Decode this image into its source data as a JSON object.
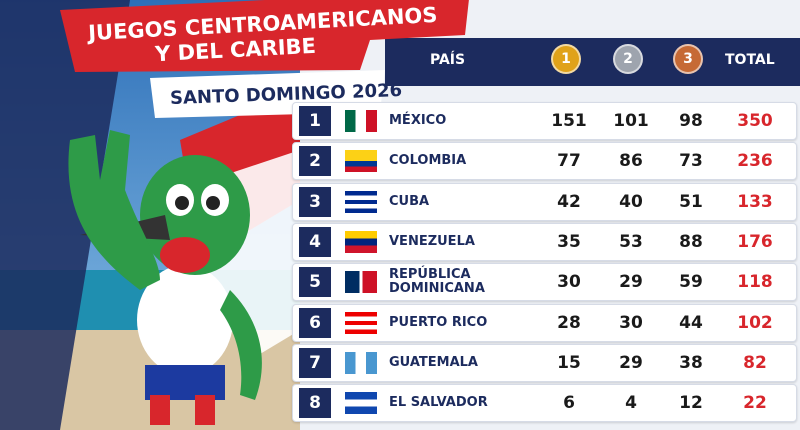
{
  "header": {
    "title_line1": "JUEGOS CENTROAMERICANOS",
    "title_line2": "Y DEL CARIBE",
    "subtitle": "SANTO DOMINGO 2026"
  },
  "table": {
    "columns": [
      "PAÍS",
      "1",
      "2",
      "3",
      "TOTAL"
    ],
    "rows": [
      [
        1,
        "MÉXICO",
        151,
        101,
        98,
        350
      ],
      [
        2,
        "COLOMBIA",
        77,
        86,
        73,
        236
      ],
      [
        3,
        "CUBA",
        42,
        40,
        51,
        133
      ],
      [
        4,
        "VENEZUELA",
        35,
        53,
        88,
        176
      ],
      [
        5,
        "REPÚBLICA DOMINICANA",
        30,
        29,
        59,
        118
      ],
      [
        6,
        "PUERTO RICO",
        28,
        30,
        44,
        102
      ],
      [
        7,
        "GUATEMALA",
        15,
        29,
        38,
        82
      ],
      [
        8,
        "EL SALVADOR",
        6,
        4,
        12,
        22
      ]
    ]
  }
}
